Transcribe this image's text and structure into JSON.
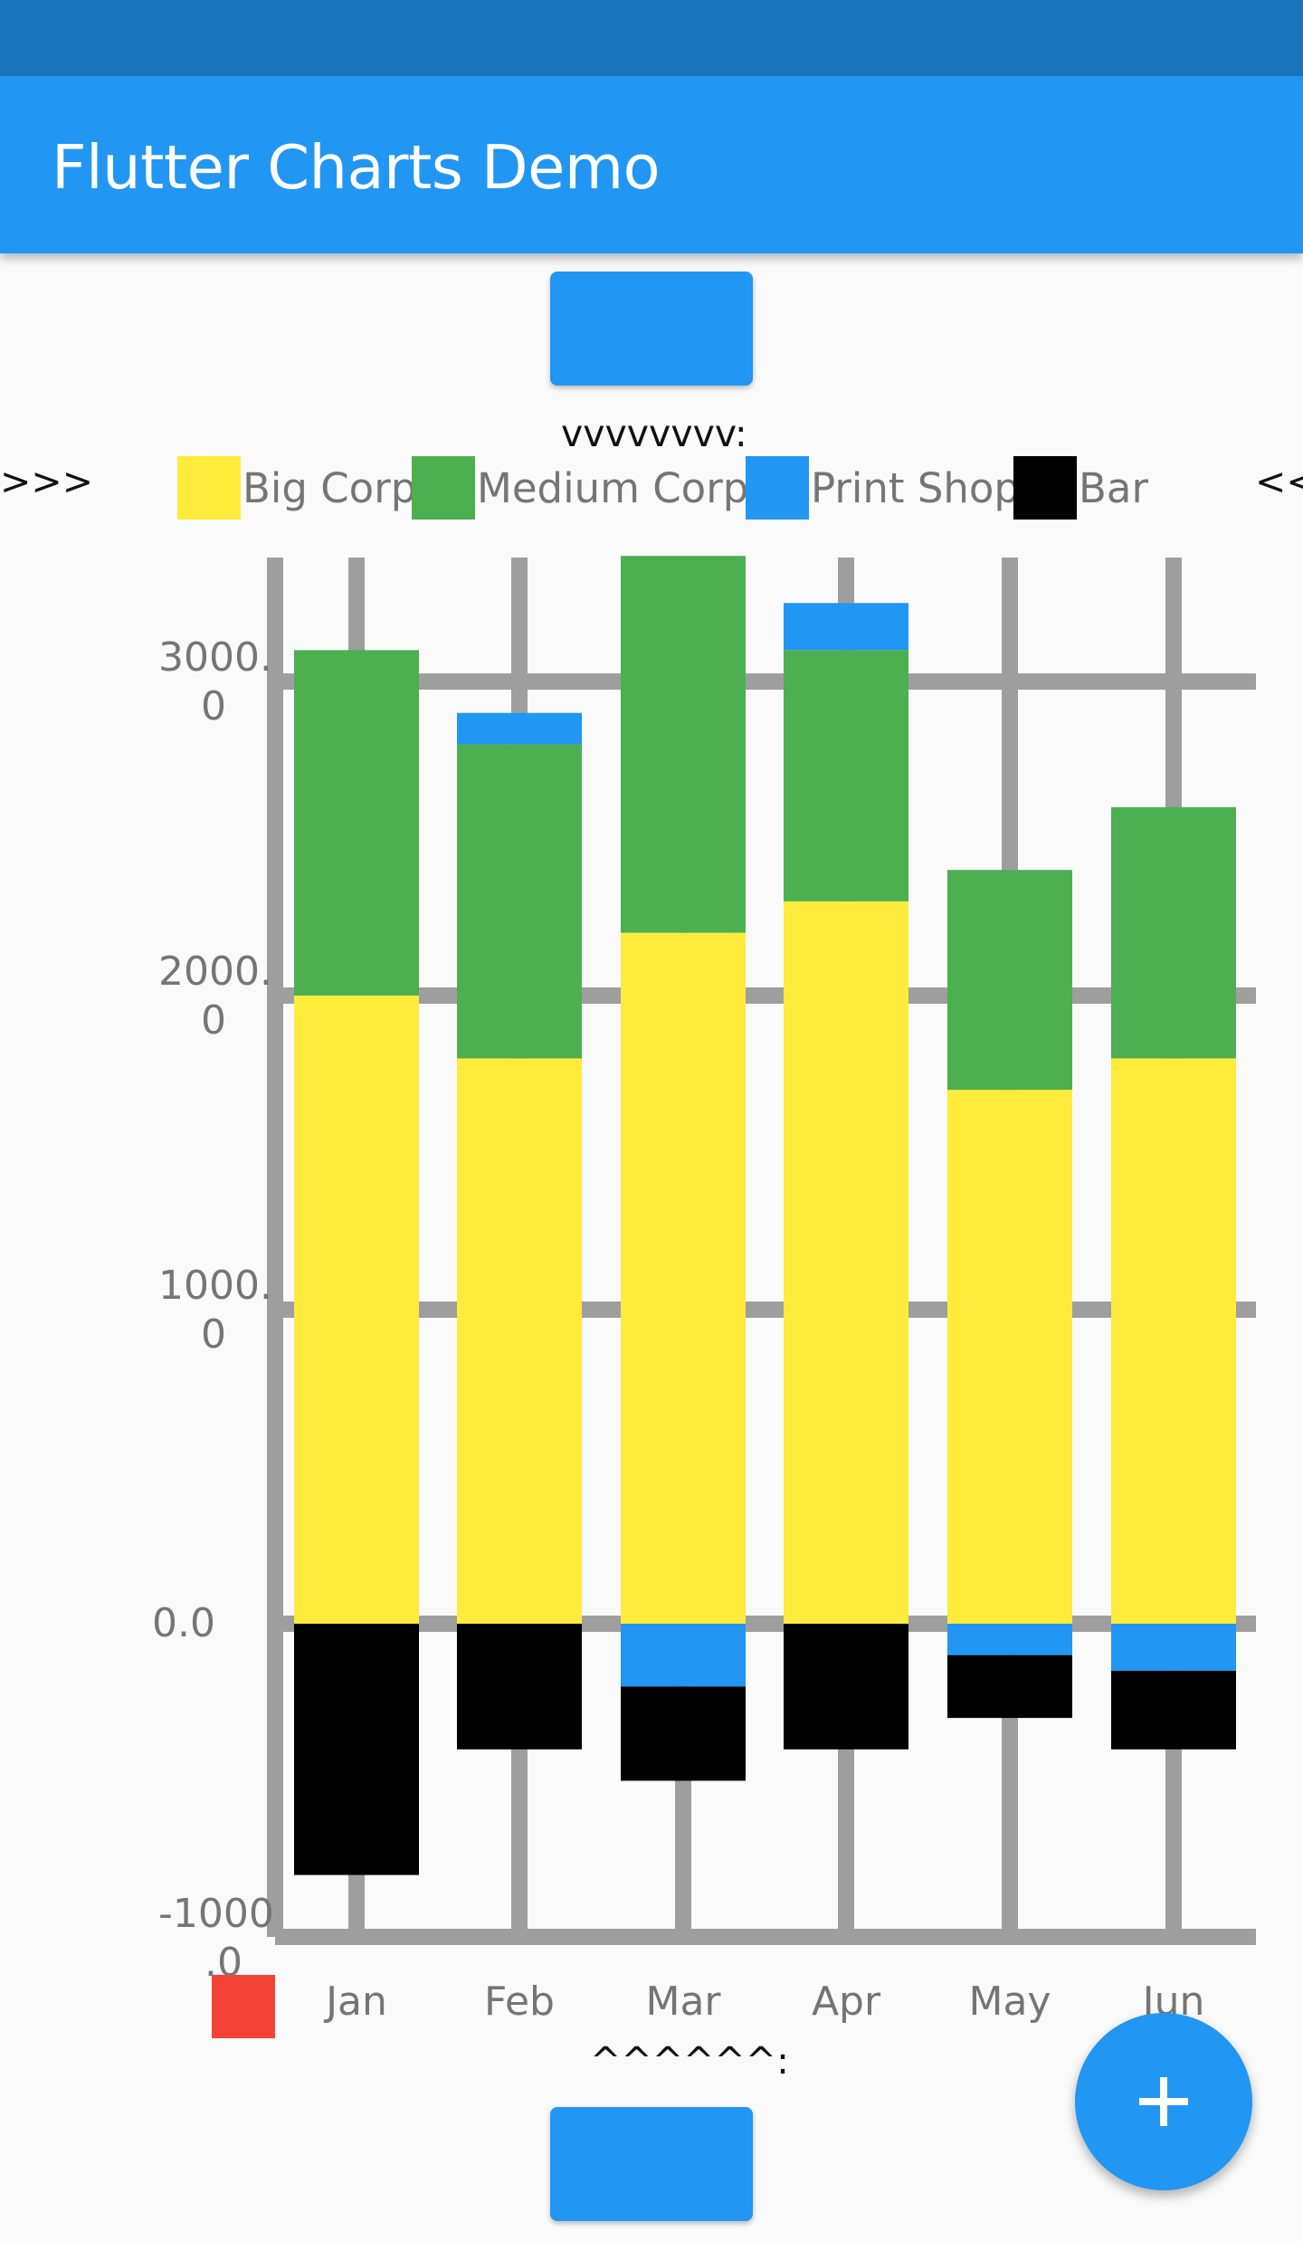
{
  "app": {
    "title": "Flutter Charts Demo"
  },
  "colors": {
    "status_bar": "#1b75bc",
    "app_bar": "#2196f3",
    "button": "#2196f3",
    "grid": "#9e9e9e",
    "extra_swatch": "#f44336"
  },
  "legend": {
    "title": "vvvvvvvv:",
    "left_arrow": ">>>",
    "right_arrow": "<<",
    "items": [
      {
        "label": "Big Corp",
        "color": "#ffeb3b"
      },
      {
        "label": "Medium Corp",
        "color": "#4caf50"
      },
      {
        "label": "Print Shop",
        "color": "#2196f3"
      },
      {
        "label": "Bar",
        "color": "#000000"
      }
    ]
  },
  "bottom_label": "^^^^^^:",
  "fab": {
    "icon": "plus-icon"
  },
  "chart_data": {
    "type": "bar",
    "stacked": true,
    "categories": [
      "Jan",
      "Feb",
      "Mar",
      "Apr",
      "May",
      "Jun"
    ],
    "y_tick_labels": [
      {
        "value": 3000,
        "line1": "3000.",
        "line2": "0"
      },
      {
        "value": 2000,
        "line1": "2000.",
        "line2": "0"
      },
      {
        "value": 1000,
        "line1": "1000.",
        "line2": "0"
      },
      {
        "value": 0,
        "line1": "0.0",
        "line2": ""
      },
      {
        "value": -1000,
        "line1": "-1000",
        "line2": ".0"
      }
    ],
    "ylim": [
      -1000,
      3400
    ],
    "grid": true,
    "legend_position": "top",
    "series": [
      {
        "name": "Big Corp",
        "color": "#ffeb3b",
        "values": [
          2000,
          1800,
          2200,
          2300,
          1700,
          1800
        ]
      },
      {
        "name": "Medium Corp",
        "color": "#4caf50",
        "values": [
          1100,
          1000,
          1200,
          800,
          700,
          800
        ]
      },
      {
        "name": "Print Shop",
        "color": "#2196f3",
        "values": [
          0,
          100,
          -200,
          150,
          -100,
          -150
        ]
      },
      {
        "name": "Bar",
        "color": "#000000",
        "values": [
          -800,
          -400,
          -300,
          -400,
          -200,
          -250
        ]
      }
    ]
  }
}
